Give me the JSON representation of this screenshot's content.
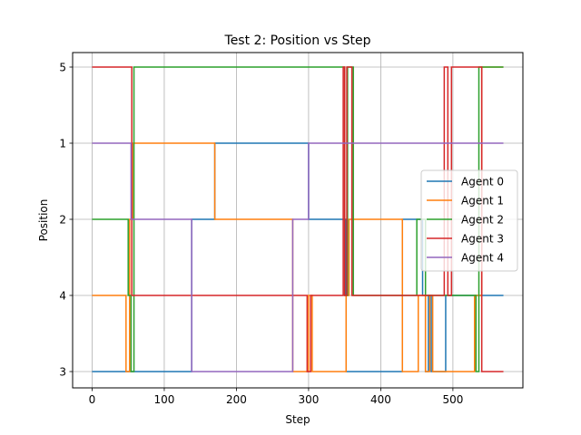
{
  "chart_data": {
    "type": "line",
    "step": true,
    "title": "Test 2: Position vs Step",
    "xlabel": "Step",
    "ylabel": "Position",
    "xlim": [
      -27,
      597
    ],
    "x_ticks": [
      0,
      100,
      200,
      300,
      400,
      500
    ],
    "y_categories": [
      "3",
      "4",
      "2",
      "1",
      "5"
    ],
    "grid": true,
    "legend_position": "center-right",
    "series": [
      {
        "name": "Agent 0",
        "color": "#1f77b4",
        "points": [
          [
            0,
            "3"
          ],
          [
            138,
            "3"
          ],
          [
            138,
            "2"
          ],
          [
            170,
            "2"
          ],
          [
            170,
            "1"
          ],
          [
            300,
            "1"
          ],
          [
            300,
            "2"
          ],
          [
            352,
            "2"
          ],
          [
            352,
            "3"
          ],
          [
            430,
            "3"
          ],
          [
            430,
            "2"
          ],
          [
            458,
            "2"
          ],
          [
            458,
            "4"
          ],
          [
            462,
            "4"
          ],
          [
            462,
            "3"
          ],
          [
            466,
            "3"
          ],
          [
            466,
            "4"
          ],
          [
            470,
            "4"
          ],
          [
            470,
            "3"
          ],
          [
            490,
            "3"
          ],
          [
            490,
            "4"
          ],
          [
            570,
            "4"
          ]
        ]
      },
      {
        "name": "Agent 1",
        "color": "#ff7f0e",
        "points": [
          [
            0,
            "4"
          ],
          [
            47,
            "4"
          ],
          [
            47,
            "3"
          ],
          [
            52,
            "3"
          ],
          [
            52,
            "2"
          ],
          [
            56,
            "2"
          ],
          [
            56,
            "1"
          ],
          [
            170,
            "1"
          ],
          [
            170,
            "2"
          ],
          [
            278,
            "2"
          ],
          [
            278,
            "3"
          ],
          [
            300,
            "3"
          ],
          [
            300,
            "4"
          ],
          [
            305,
            "4"
          ],
          [
            305,
            "3"
          ],
          [
            352,
            "3"
          ],
          [
            352,
            "4"
          ],
          [
            356,
            "4"
          ],
          [
            356,
            "2"
          ],
          [
            430,
            "2"
          ],
          [
            430,
            "3"
          ],
          [
            452,
            "3"
          ],
          [
            452,
            "4"
          ],
          [
            462,
            "4"
          ],
          [
            462,
            "3"
          ],
          [
            468,
            "3"
          ],
          [
            468,
            "4"
          ],
          [
            472,
            "4"
          ],
          [
            472,
            "3"
          ],
          [
            530,
            "3"
          ],
          [
            530,
            "4"
          ],
          [
            540,
            "4"
          ],
          [
            540,
            "5"
          ],
          [
            570,
            "5"
          ]
        ]
      },
      {
        "name": "Agent 2",
        "color": "#2ca02c",
        "points": [
          [
            0,
            "2"
          ],
          [
            50,
            "2"
          ],
          [
            50,
            "4"
          ],
          [
            54,
            "4"
          ],
          [
            54,
            "3"
          ],
          [
            58,
            "3"
          ],
          [
            58,
            "5"
          ],
          [
            350,
            "5"
          ],
          [
            350,
            "4"
          ],
          [
            354,
            "4"
          ],
          [
            354,
            "5"
          ],
          [
            362,
            "5"
          ],
          [
            362,
            "4"
          ],
          [
            450,
            "4"
          ],
          [
            450,
            "2"
          ],
          [
            462,
            "2"
          ],
          [
            462,
            "4"
          ],
          [
            532,
            "4"
          ],
          [
            532,
            "3"
          ],
          [
            536,
            "3"
          ],
          [
            536,
            "5"
          ],
          [
            570,
            "5"
          ]
        ]
      },
      {
        "name": "Agent 3",
        "color": "#d62728",
        "points": [
          [
            0,
            "5"
          ],
          [
            55,
            "5"
          ],
          [
            55,
            "4"
          ],
          [
            298,
            "4"
          ],
          [
            298,
            "3"
          ],
          [
            303,
            "3"
          ],
          [
            303,
            "4"
          ],
          [
            348,
            "4"
          ],
          [
            348,
            "5"
          ],
          [
            350,
            "5"
          ],
          [
            350,
            "4"
          ],
          [
            353,
            "4"
          ],
          [
            353,
            "5"
          ],
          [
            360,
            "5"
          ],
          [
            360,
            "4"
          ],
          [
            488,
            "4"
          ],
          [
            488,
            "5"
          ],
          [
            493,
            "5"
          ],
          [
            493,
            "4"
          ],
          [
            498,
            "4"
          ],
          [
            498,
            "5"
          ],
          [
            540,
            "5"
          ],
          [
            540,
            "3"
          ],
          [
            570,
            "3"
          ]
        ]
      },
      {
        "name": "Agent 4",
        "color": "#9467bd",
        "points": [
          [
            0,
            "1"
          ],
          [
            54,
            "1"
          ],
          [
            54,
            "2"
          ],
          [
            138,
            "2"
          ],
          [
            138,
            "3"
          ],
          [
            278,
            "3"
          ],
          [
            278,
            "2"
          ],
          [
            300,
            "2"
          ],
          [
            300,
            "1"
          ],
          [
            570,
            "1"
          ]
        ]
      }
    ]
  }
}
